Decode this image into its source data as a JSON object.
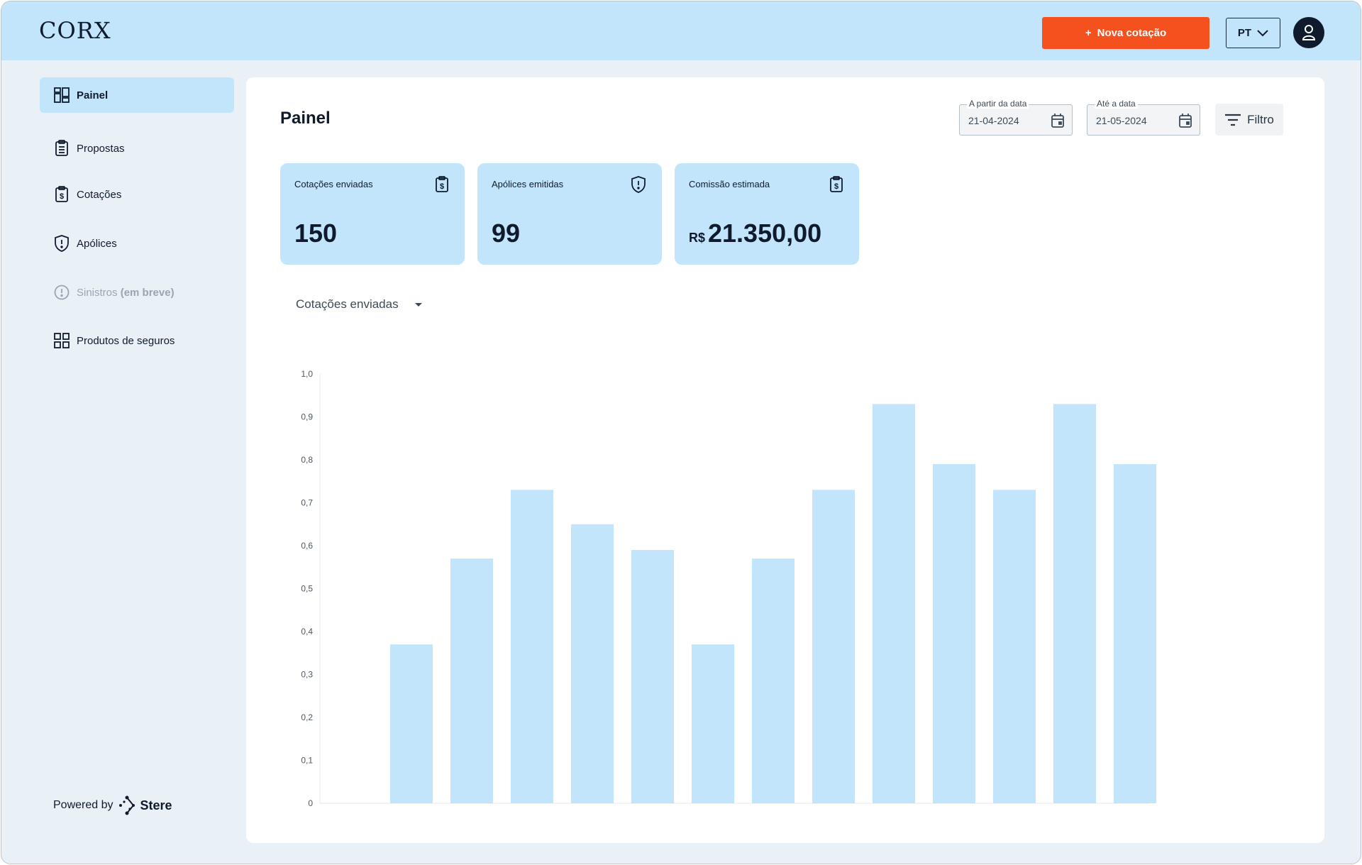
{
  "header": {
    "logo": "CORX",
    "new_button": "Nova cotação",
    "new_button_icon": "+",
    "language": "PT"
  },
  "sidebar": {
    "items": [
      {
        "label": "Painel",
        "icon": "dashboard-icon",
        "active": true
      },
      {
        "label": "Propostas",
        "icon": "clipboard-icon"
      },
      {
        "label": "Cotações",
        "icon": "dollar-clipboard-icon"
      },
      {
        "label": "Apólices",
        "icon": "shield-icon"
      },
      {
        "label": "Sinistros",
        "suffix": "(em breve)",
        "icon": "alert-circle-icon",
        "disabled": true
      },
      {
        "label": "Produtos de seguros",
        "icon": "grid-icon"
      }
    ],
    "powered_by": "Powered by",
    "brand": "Stere"
  },
  "main": {
    "title": "Painel",
    "date_from": {
      "label": "A partir da data",
      "value": "21-04-2024"
    },
    "date_to": {
      "label": "Até a data",
      "value": "21-05-2024"
    },
    "filter_label": "Filtro",
    "cards": [
      {
        "title": "Cotações enviadas",
        "value": "150",
        "icon": "dollar-clipboard-icon"
      },
      {
        "title": "Apólices emitidas",
        "value": "99",
        "icon": "shield-alert-icon"
      },
      {
        "title": "Comissão estimada",
        "currency": "R$",
        "value": "21.350,00",
        "icon": "dollar-clipboard-icon"
      }
    ],
    "metric_select": "Cotações enviadas"
  },
  "colors": {
    "accent": "#f4511e",
    "header_bg": "#c3e5fb",
    "bar": "#c3e5fb"
  },
  "chart_data": {
    "type": "bar",
    "title": "",
    "xlabel": "",
    "ylabel": "",
    "ylim": [
      0,
      1.0
    ],
    "yticks": [
      "0",
      "0,1",
      "0,2",
      "0,3",
      "0,4",
      "0,5",
      "0,6",
      "0,7",
      "0,8",
      "0,9",
      "1,0"
    ],
    "values": [
      0.37,
      0.57,
      0.73,
      0.65,
      0.59,
      0.37,
      0.57,
      0.73,
      0.93,
      0.79,
      0.73,
      0.93,
      0.79
    ]
  }
}
